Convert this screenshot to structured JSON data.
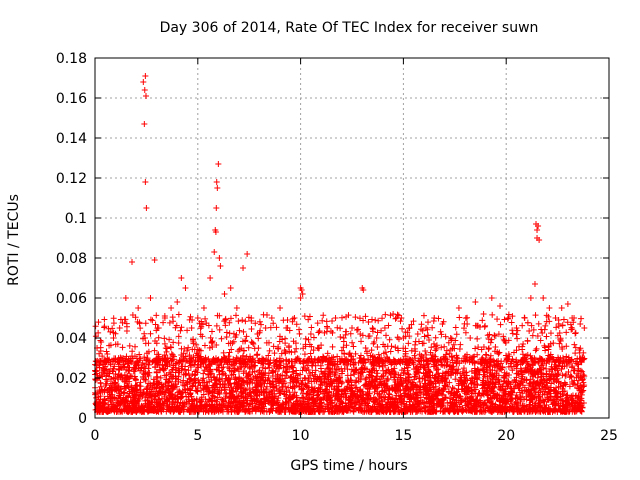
{
  "chart_data": {
    "type": "scatter",
    "title": "Day 306 of 2014, Rate Of TEC Index for receiver suwn",
    "xlabel": "GPS time / hours",
    "ylabel": "ROTI / TECUs",
    "xlim": [
      0,
      25
    ],
    "ylim": [
      0,
      0.18
    ],
    "xticks": [
      0,
      5,
      10,
      15,
      20,
      25
    ],
    "xtick_labels": [
      "0",
      "5",
      "10",
      "15",
      "20",
      "25"
    ],
    "yticks": [
      0,
      0.02,
      0.04,
      0.06,
      0.08,
      0.1,
      0.12,
      0.14,
      0.16,
      0.18
    ],
    "ytick_labels": [
      "0",
      "0.02",
      "0.04",
      "0.06",
      "0.08",
      "0.1",
      "0.12",
      "0.14",
      "0.16",
      "0.18"
    ],
    "grid": true,
    "marker": "+",
    "color": "#ff0000",
    "series": [
      {
        "name": "ROTI",
        "x": [
          0.1,
          0.3,
          0.6,
          0.9,
          1.2,
          1.5,
          1.8,
          2.1,
          2.35,
          2.4,
          2.45,
          2.5,
          2.7,
          2.9,
          3.1,
          3.4,
          3.7,
          4.0,
          4.2,
          4.4,
          4.7,
          5.0,
          5.3,
          5.6,
          5.8,
          5.85,
          5.9,
          5.95,
          6.0,
          6.05,
          6.1,
          6.3,
          6.6,
          6.9,
          7.2,
          7.4,
          7.6,
          7.9,
          8.3,
          8.6,
          9.0,
          9.3,
          9.7,
          10.0,
          10.1,
          10.5,
          10.9,
          11.3,
          11.7,
          12.1,
          12.5,
          12.9,
          13.0,
          13.3,
          13.7,
          14.1,
          14.5,
          14.9,
          15.3,
          15.7,
          16.1,
          16.5,
          16.9,
          17.3,
          17.7,
          18.1,
          18.5,
          18.9,
          19.3,
          19.7,
          20.1,
          20.5,
          20.9,
          21.2,
          21.4,
          21.45,
          21.5,
          21.6,
          21.8,
          22.1,
          22.4,
          22.7,
          23.0,
          23.3,
          23.6,
          23.8,
          0.2,
          1.0,
          1.9,
          3.0,
          4.5,
          5.5,
          6.5,
          7.7,
          8.8,
          9.5,
          11.0,
          12.3,
          13.5,
          14.7,
          15.8,
          17.0,
          18.3,
          19.5,
          20.7,
          22.0,
          23.2,
          2.45,
          2.42,
          2.48,
          5.92,
          5.88,
          21.5,
          21.55,
          10.05,
          10.0,
          13.05,
          15.0
        ],
        "y": [
          0.035,
          0.038,
          0.032,
          0.04,
          0.045,
          0.06,
          0.078,
          0.055,
          0.168,
          0.147,
          0.118,
          0.105,
          0.06,
          0.079,
          0.045,
          0.05,
          0.055,
          0.058,
          0.07,
          0.065,
          0.045,
          0.05,
          0.055,
          0.07,
          0.083,
          0.094,
          0.105,
          0.115,
          0.127,
          0.08,
          0.076,
          0.062,
          0.065,
          0.055,
          0.075,
          0.082,
          0.05,
          0.042,
          0.045,
          0.05,
          0.055,
          0.045,
          0.05,
          0.065,
          0.062,
          0.042,
          0.035,
          0.045,
          0.05,
          0.04,
          0.045,
          0.042,
          0.065,
          0.048,
          0.04,
          0.045,
          0.052,
          0.05,
          0.045,
          0.042,
          0.045,
          0.05,
          0.047,
          0.04,
          0.055,
          0.047,
          0.058,
          0.052,
          0.06,
          0.056,
          0.05,
          0.045,
          0.05,
          0.06,
          0.067,
          0.097,
          0.094,
          0.089,
          0.06,
          0.055,
          0.05,
          0.055,
          0.057,
          0.05,
          0.047,
          0.045,
          0.02,
          0.022,
          0.025,
          0.02,
          0.018,
          0.022,
          0.02,
          0.02,
          0.018,
          0.02,
          0.018,
          0.019,
          0.018,
          0.017,
          0.018,
          0.019,
          0.017,
          0.018,
          0.017,
          0.016,
          0.018,
          0.171,
          0.164,
          0.161,
          0.118,
          0.093,
          0.09,
          0.096,
          0.064,
          0.06,
          0.064,
          0.04
        ]
      }
    ],
    "dense_band": {
      "y_min": 0.003,
      "y_max": 0.03,
      "x_min": 0,
      "x_max": 23.8
    }
  }
}
